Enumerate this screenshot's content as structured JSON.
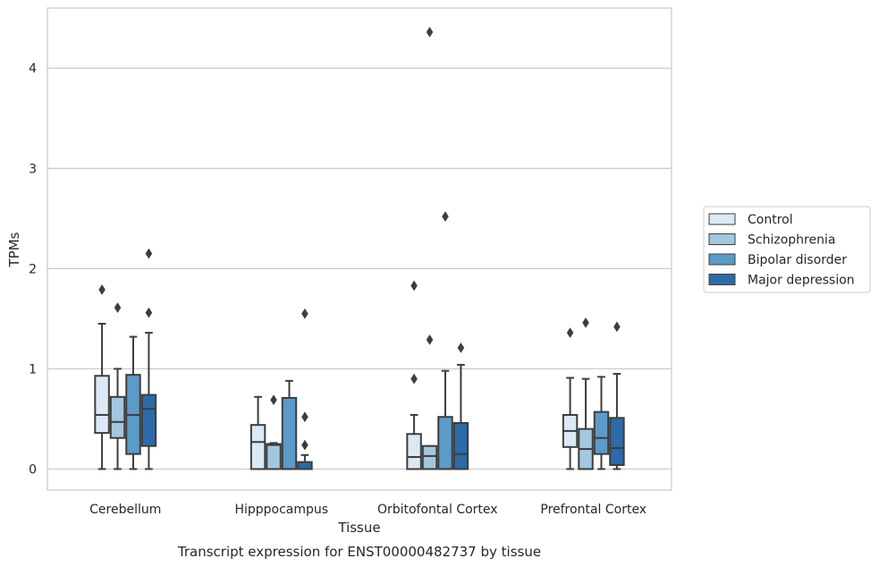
{
  "chart_data": {
    "type": "box",
    "xlabel": "Tissue",
    "ylabel": "TPMs",
    "caption": "Transcript expression for ENST00000482737 by tissue",
    "ylim": [
      -0.21,
      4.6
    ],
    "yticks": [
      0,
      1,
      2,
      3,
      4
    ],
    "grid": true,
    "legend_position": "right",
    "categories": [
      "Cerebellum",
      "Hipppocampus",
      "Orbitofontal Cortex",
      "Prefrontal Cortex"
    ],
    "series": [
      {
        "name": "Control",
        "color": "#dbe8f5",
        "boxes": [
          {
            "whislo": 0.0,
            "q1": 0.36,
            "med": 0.54,
            "q3": 0.93,
            "whishi": 1.45,
            "fliers": [
              1.79
            ]
          },
          {
            "whislo": 0.0,
            "q1": 0.0,
            "med": 0.27,
            "q3": 0.44,
            "whishi": 0.72,
            "fliers": []
          },
          {
            "whislo": 0.0,
            "q1": 0.0,
            "med": 0.12,
            "q3": 0.35,
            "whishi": 0.54,
            "fliers": [
              0.9,
              1.83
            ]
          },
          {
            "whislo": 0.0,
            "q1": 0.22,
            "med": 0.38,
            "q3": 0.54,
            "whishi": 0.91,
            "fliers": [
              1.36
            ]
          }
        ]
      },
      {
        "name": "Schizophrenia",
        "color": "#a3c7de",
        "boxes": [
          {
            "whislo": 0.0,
            "q1": 0.31,
            "med": 0.47,
            "q3": 0.72,
            "whishi": 1.0,
            "fliers": [
              1.61
            ]
          },
          {
            "whislo": 0.0,
            "q1": 0.0,
            "med": 0.24,
            "q3": 0.25,
            "whishi": 0.26,
            "fliers": [
              0.69
            ]
          },
          {
            "whislo": 0.0,
            "q1": 0.0,
            "med": 0.13,
            "q3": 0.23,
            "whishi": 0.23,
            "fliers": [
              1.29,
              4.36
            ]
          },
          {
            "whislo": 0.0,
            "q1": 0.0,
            "med": 0.2,
            "q3": 0.4,
            "whishi": 0.9,
            "fliers": [
              1.46
            ]
          }
        ]
      },
      {
        "name": "Bipolar disorder",
        "color": "#5c9ac8",
        "boxes": [
          {
            "whislo": 0.0,
            "q1": 0.15,
            "med": 0.54,
            "q3": 0.94,
            "whishi": 1.32,
            "fliers": []
          },
          {
            "whislo": 0.0,
            "q1": 0.0,
            "med": 0.0,
            "q3": 0.71,
            "whishi": 0.88,
            "fliers": []
          },
          {
            "whislo": 0.0,
            "q1": 0.0,
            "med": 0.0,
            "q3": 0.52,
            "whishi": 0.98,
            "fliers": [
              2.52
            ]
          },
          {
            "whislo": 0.0,
            "q1": 0.15,
            "med": 0.31,
            "q3": 0.57,
            "whishi": 0.92,
            "fliers": []
          }
        ]
      },
      {
        "name": "Major depression",
        "color": "#2c6aa8",
        "boxes": [
          {
            "whislo": 0.0,
            "q1": 0.23,
            "med": 0.6,
            "q3": 0.74,
            "whishi": 1.36,
            "fliers": [
              1.56,
              2.15
            ]
          },
          {
            "whislo": 0.0,
            "q1": 0.0,
            "med": 0.0,
            "q3": 0.07,
            "whishi": 0.14,
            "fliers": [
              0.24,
              0.52,
              1.55
            ]
          },
          {
            "whislo": 0.0,
            "q1": 0.0,
            "med": 0.15,
            "q3": 0.46,
            "whishi": 1.04,
            "fliers": [
              1.21
            ]
          },
          {
            "whislo": 0.0,
            "q1": 0.04,
            "med": 0.21,
            "q3": 0.51,
            "whishi": 0.95,
            "fliers": [
              1.42
            ]
          }
        ]
      }
    ]
  }
}
